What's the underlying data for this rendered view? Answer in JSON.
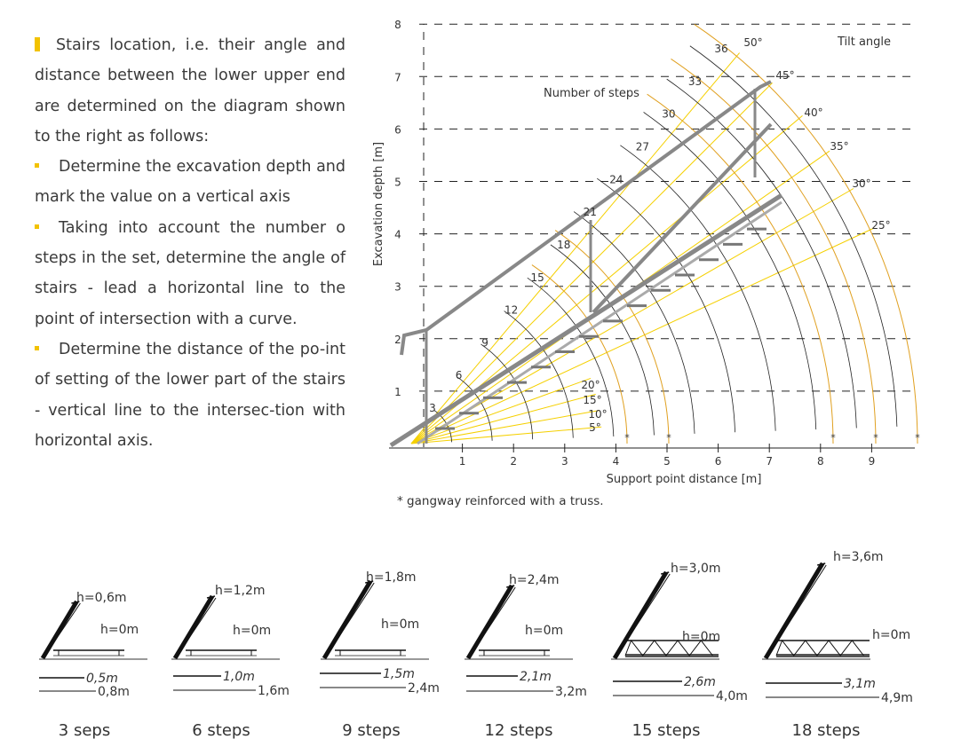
{
  "intro": {
    "lead": "Stairs location, i.e. their angle and distance between the lower upper end are determined on the diagram shown to the right as follows:",
    "bullets": [
      "Determine the excavation depth and mark the value on a vertical axis",
      "Taking into account the number o steps in the set, determine the angle of stairs - lead a horizontal line to the point of intersection with a curve.",
      "Determine the distance of the po-int of setting of the lower part of the stairs - vertical line to the intersec-tion with horizontal axis."
    ]
  },
  "nomogram": {
    "y_axis_label": "Excavation depth [m]",
    "x_axis_label": "Support point distance [m]",
    "yticks": [
      "1",
      "2",
      "3",
      "4",
      "5",
      "6",
      "7",
      "8"
    ],
    "xticks": [
      "1",
      "2",
      "3",
      "4",
      "5",
      "6",
      "7",
      "8",
      "9"
    ],
    "steps_title": "Number of steps",
    "step_labels": [
      "3",
      "6",
      "9",
      "12",
      "15",
      "18",
      "21",
      "24",
      "27",
      "30",
      "33",
      "36"
    ],
    "angle_title": "Tilt angle",
    "angle_labels": [
      "5°",
      "10°",
      "15°",
      "20°",
      "25°",
      "30°",
      "35°",
      "40°",
      "45°",
      "50°"
    ],
    "truss_marks": [
      "*",
      "*",
      "*",
      "*",
      "*"
    ],
    "note": "* gangway reinforced with a truss."
  },
  "examples": [
    {
      "h_top": "h=0,6m",
      "h_bottom": "h=0m",
      "dist_near": "0,5m",
      "dist_far": "0,8m",
      "steps": "3 seps"
    },
    {
      "h_top": "h=1,2m",
      "h_bottom": "h=0m",
      "dist_near": "1,0m",
      "dist_far": "1,6m",
      "steps": "6 steps"
    },
    {
      "h_top": "h=1,8m",
      "h_bottom": "h=0m",
      "dist_near": "1,5m",
      "dist_far": "2,4m",
      "steps": "9 steps"
    },
    {
      "h_top": "h=2,4m",
      "h_bottom": "h=0m",
      "dist_near": "2,1m",
      "dist_far": "3,2m",
      "steps": "12 steps"
    },
    {
      "h_top": "h=3,0m",
      "h_bottom": "h=0m",
      "dist_near": "2,6m",
      "dist_far": "4,0m",
      "steps": "15 steps"
    },
    {
      "h_top": "h=3,6m",
      "h_bottom": "h=0m",
      "dist_near": "3,1m",
      "dist_far": "4,9m",
      "steps": "18 steps"
    }
  ]
}
